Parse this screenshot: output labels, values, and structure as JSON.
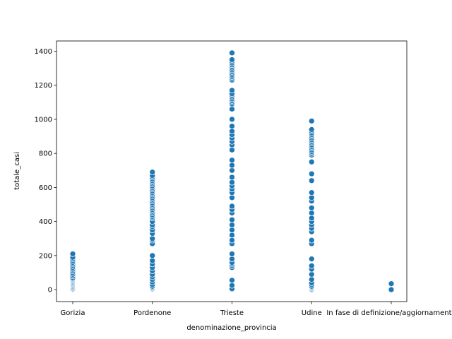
{
  "chart_data": {
    "type": "scatter",
    "title": "",
    "xlabel": "denominazione_provincia",
    "ylabel": "totale_casi",
    "categories": [
      "Gorizia",
      "Pordenone",
      "Trieste",
      "Udine",
      "In fase di definizione/aggiornamento"
    ],
    "ylim": [
      -70,
      1460
    ],
    "yticks": [
      0,
      200,
      400,
      600,
      800,
      1000,
      1200,
      1400
    ],
    "grid": false,
    "marker_color": "#1f77b4",
    "marker_edge_color": "#ffffff",
    "series": [
      {
        "values_by_category": [
          [
            2,
            5,
            10,
            15,
            20,
            25,
            30,
            35,
            40,
            45,
            50,
            55,
            60,
            65,
            70,
            80,
            90,
            100,
            110,
            120,
            130,
            140,
            150,
            160,
            170,
            180,
            190,
            210
          ],
          [
            5,
            10,
            15,
            20,
            30,
            45,
            60,
            75,
            90,
            110,
            130,
            150,
            170,
            200,
            270,
            290,
            300,
            330,
            350,
            370,
            380,
            400,
            420,
            430,
            440,
            450,
            460,
            470,
            480,
            490,
            500,
            510,
            520,
            530,
            540,
            550,
            560,
            570,
            580,
            590,
            600,
            610,
            620,
            630,
            640,
            650,
            660,
            670,
            690
          ],
          [
            5,
            25,
            55,
            130,
            140,
            150,
            160,
            180,
            210,
            270,
            290,
            320,
            350,
            380,
            410,
            450,
            470,
            490,
            540,
            570,
            590,
            610,
            630,
            660,
            700,
            730,
            760,
            820,
            850,
            870,
            890,
            910,
            930,
            960,
            1000,
            1060,
            1090,
            1100,
            1110,
            1120,
            1130,
            1140,
            1150,
            1170,
            1230,
            1240,
            1250,
            1260,
            1270,
            1280,
            1290,
            1300,
            1310,
            1320,
            1330,
            1340,
            1350,
            1390
          ],
          [
            0,
            5,
            10,
            15,
            20,
            30,
            40,
            60,
            90,
            120,
            140,
            180,
            270,
            290,
            340,
            360,
            380,
            400,
            420,
            450,
            480,
            520,
            540,
            570,
            640,
            680,
            750,
            790,
            800,
            810,
            820,
            830,
            840,
            850,
            860,
            870,
            880,
            890,
            900,
            910,
            920,
            930,
            940,
            990
          ],
          [
            0,
            35
          ]
        ]
      }
    ]
  }
}
